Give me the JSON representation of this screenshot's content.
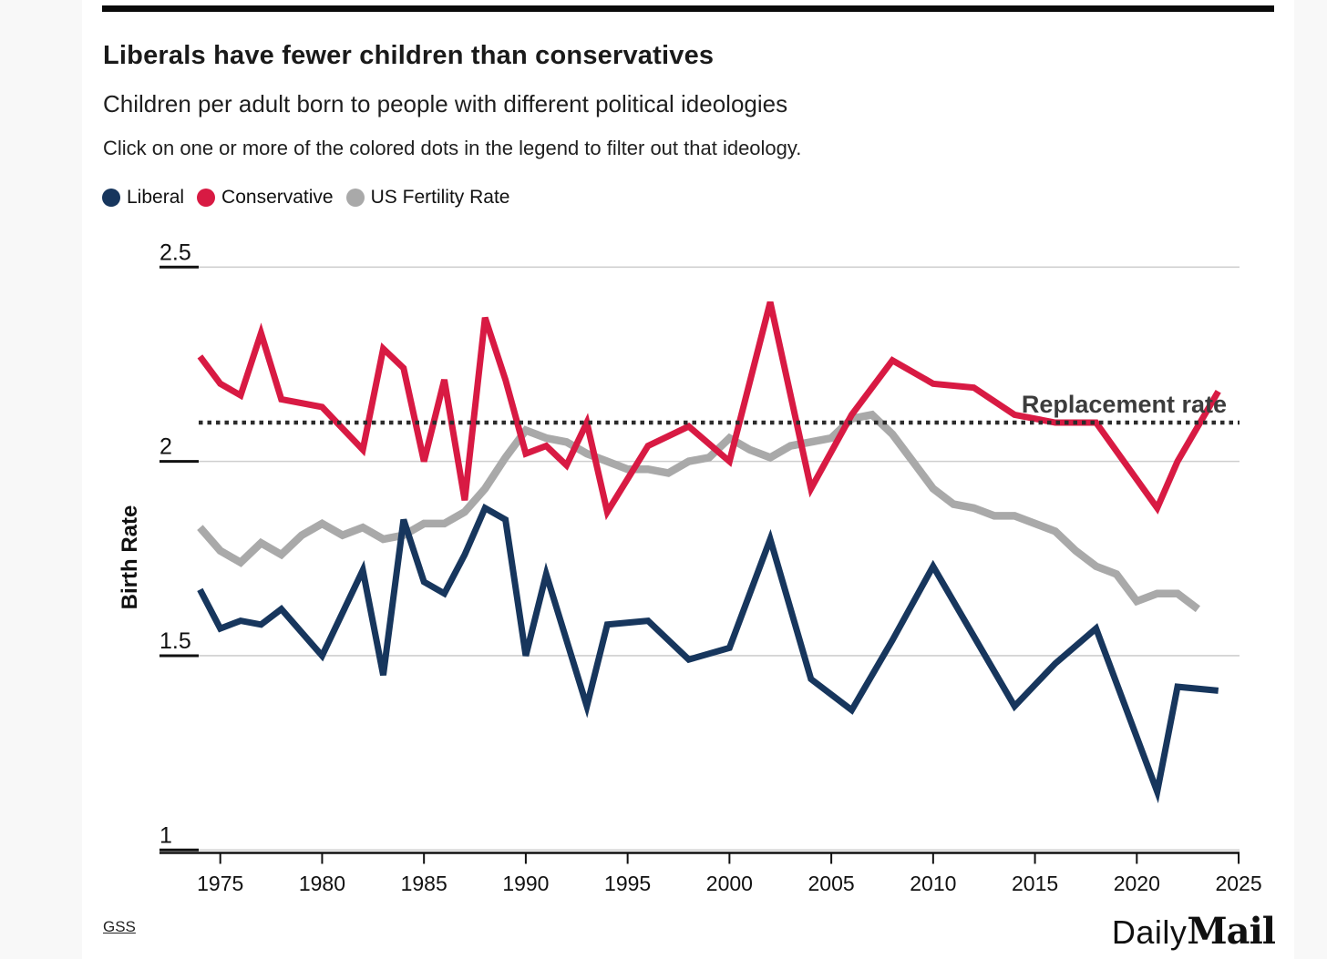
{
  "page": {
    "title": "Liberals have fewer children than conservatives",
    "subtitle": "Children per adult born to people with different political ideologies",
    "note": "Click on one or more of the colored dots in the legend to filter out that ideology.",
    "source": "GSS",
    "brand": {
      "daily": "Daily",
      "mail": "Mail"
    }
  },
  "legend": [
    {
      "label": "Liberal",
      "color": "#17365d"
    },
    {
      "label": "Conservative",
      "color": "#d81a43"
    },
    {
      "label": "US Fertility Rate",
      "color": "#a9a9a9"
    }
  ],
  "chart_data": {
    "type": "line",
    "title": "Liberals have fewer children than conservatives",
    "subtitle": "Children per adult born to people with different political ideologies",
    "xlabel": "",
    "ylabel": "Birth Rate",
    "xlim": [
      1973.5,
      2025.5
    ],
    "ylim": [
      1,
      2.5
    ],
    "xticks": [
      1975,
      1980,
      1985,
      1990,
      1995,
      2000,
      2005,
      2010,
      2015,
      2020,
      2025
    ],
    "yticks": [
      1,
      1.5,
      2,
      2.5
    ],
    "grid": "horizontal",
    "legend_position": "top-left",
    "annotation": {
      "label": "Replacement rate",
      "value": 2.1
    },
    "series": [
      {
        "name": "Liberal",
        "color": "#17365d",
        "width": 7,
        "points": [
          [
            1974,
            1.67
          ],
          [
            1975,
            1.57
          ],
          [
            1976,
            1.59
          ],
          [
            1977,
            1.58
          ],
          [
            1978,
            1.62
          ],
          [
            1980,
            1.5
          ],
          [
            1982,
            1.72
          ],
          [
            1983,
            1.45
          ],
          [
            1984,
            1.85
          ],
          [
            1985,
            1.69
          ],
          [
            1986,
            1.66
          ],
          [
            1987,
            1.76
          ],
          [
            1988,
            1.88
          ],
          [
            1989,
            1.85
          ],
          [
            1990,
            1.5
          ],
          [
            1991,
            1.71
          ],
          [
            1993,
            1.37
          ],
          [
            1994,
            1.58
          ],
          [
            1996,
            1.59
          ],
          [
            1998,
            1.49
          ],
          [
            2000,
            1.52
          ],
          [
            2002,
            1.8
          ],
          [
            2004,
            1.44
          ],
          [
            2006,
            1.36
          ],
          [
            2008,
            1.54
          ],
          [
            2010,
            1.73
          ],
          [
            2012,
            1.55
          ],
          [
            2014,
            1.37
          ],
          [
            2016,
            1.48
          ],
          [
            2018,
            1.57
          ],
          [
            2021,
            1.15
          ],
          [
            2022,
            1.42
          ],
          [
            2024,
            1.41
          ]
        ]
      },
      {
        "name": "Conservative",
        "color": "#d81a43",
        "width": 7,
        "points": [
          [
            1974,
            2.27
          ],
          [
            1975,
            2.2
          ],
          [
            1976,
            2.17
          ],
          [
            1977,
            2.33
          ],
          [
            1978,
            2.16
          ],
          [
            1980,
            2.14
          ],
          [
            1982,
            2.03
          ],
          [
            1983,
            2.29
          ],
          [
            1984,
            2.24
          ],
          [
            1985,
            2.0
          ],
          [
            1986,
            2.21
          ],
          [
            1987,
            1.9
          ],
          [
            1988,
            2.37
          ],
          [
            1989,
            2.21
          ],
          [
            1990,
            2.02
          ],
          [
            1991,
            2.04
          ],
          [
            1992,
            1.99
          ],
          [
            1993,
            2.1
          ],
          [
            1994,
            1.87
          ],
          [
            1996,
            2.04
          ],
          [
            1998,
            2.09
          ],
          [
            2000,
            2.0
          ],
          [
            2002,
            2.41
          ],
          [
            2004,
            1.93
          ],
          [
            2006,
            2.12
          ],
          [
            2008,
            2.26
          ],
          [
            2010,
            2.2
          ],
          [
            2012,
            2.19
          ],
          [
            2014,
            2.12
          ],
          [
            2016,
            2.1
          ],
          [
            2018,
            2.1
          ],
          [
            2021,
            1.88
          ],
          [
            2022,
            2.0
          ],
          [
            2024,
            2.18
          ]
        ]
      },
      {
        "name": "US Fertility Rate",
        "color": "#a9a9a9",
        "width": 8.5,
        "points": [
          [
            1974,
            1.83
          ],
          [
            1975,
            1.77
          ],
          [
            1976,
            1.74
          ],
          [
            1977,
            1.79
          ],
          [
            1978,
            1.76
          ],
          [
            1979,
            1.81
          ],
          [
            1980,
            1.84
          ],
          [
            1981,
            1.81
          ],
          [
            1982,
            1.83
          ],
          [
            1983,
            1.8
          ],
          [
            1984,
            1.81
          ],
          [
            1985,
            1.84
          ],
          [
            1986,
            1.84
          ],
          [
            1987,
            1.87
          ],
          [
            1988,
            1.93
          ],
          [
            1989,
            2.01
          ],
          [
            1990,
            2.08
          ],
          [
            1991,
            2.06
          ],
          [
            1992,
            2.05
          ],
          [
            1993,
            2.02
          ],
          [
            1994,
            2.0
          ],
          [
            1995,
            1.98
          ],
          [
            1996,
            1.98
          ],
          [
            1997,
            1.97
          ],
          [
            1998,
            2.0
          ],
          [
            1999,
            2.01
          ],
          [
            2000,
            2.06
          ],
          [
            2001,
            2.03
          ],
          [
            2002,
            2.01
          ],
          [
            2003,
            2.04
          ],
          [
            2004,
            2.05
          ],
          [
            2005,
            2.06
          ],
          [
            2006,
            2.11
          ],
          [
            2007,
            2.12
          ],
          [
            2008,
            2.07
          ],
          [
            2009,
            2.0
          ],
          [
            2010,
            1.93
          ],
          [
            2011,
            1.89
          ],
          [
            2012,
            1.88
          ],
          [
            2013,
            1.86
          ],
          [
            2014,
            1.86
          ],
          [
            2015,
            1.84
          ],
          [
            2016,
            1.82
          ],
          [
            2017,
            1.77
          ],
          [
            2018,
            1.73
          ],
          [
            2019,
            1.71
          ],
          [
            2020,
            1.64
          ],
          [
            2021,
            1.66
          ],
          [
            2022,
            1.66
          ],
          [
            2023,
            1.62
          ]
        ]
      }
    ]
  }
}
